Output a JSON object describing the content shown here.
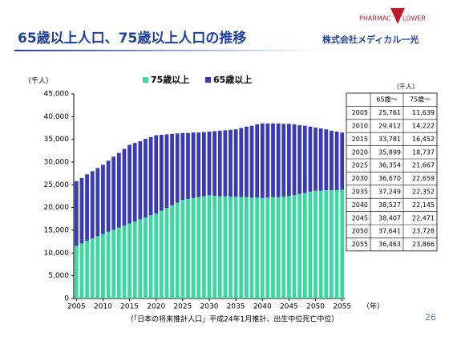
{
  "title": "65歳以上人口、75歳以上人口の推移",
  "logo": {
    "brand_left": "PHARMAC",
    "brand_right": "LOWER",
    "company": "株式会社メディカル一光"
  },
  "footnote": "（「日本の将来推計人口」平成24年1月推計、出生中位死亡中位）",
  "page_number": "26",
  "chart_data": {
    "type": "stacked_bar",
    "y_unit": "（千人）",
    "x_unit": "（年）",
    "grid": false,
    "legend": "top",
    "categories": [
      "2005",
      null,
      null,
      null,
      null,
      "2010",
      null,
      null,
      null,
      null,
      "2015",
      null,
      null,
      null,
      null,
      "2020",
      null,
      null,
      null,
      null,
      "2025",
      null,
      null,
      null,
      null,
      "2030",
      null,
      null,
      null,
      null,
      "2035",
      null,
      null,
      null,
      null,
      "2040",
      null,
      null,
      null,
      null,
      "2045",
      null,
      null,
      null,
      null,
      "2050",
      null,
      null,
      null,
      null,
      "2055"
    ],
    "series": [
      {
        "name": "75歳以上",
        "color": "#3cd8a0",
        "values": [
          11600,
          12100,
          12700,
          13200,
          13700,
          14200,
          14700,
          15100,
          15600,
          16000,
          16500,
          16900,
          17400,
          17800,
          18300,
          18700,
          19300,
          19900,
          20500,
          21100,
          21700,
          21900,
          22100,
          22300,
          22500,
          22700,
          22600,
          22500,
          22500,
          22400,
          22400,
          22300,
          22300,
          22200,
          22200,
          22100,
          22200,
          22300,
          22300,
          22400,
          22500,
          22700,
          23000,
          23200,
          23500,
          23700,
          23700,
          23800,
          23800,
          23800,
          23900
        ]
      },
      {
        "name": "65歳以上",
        "color": "#3a3ab4",
        "values": [
          14200,
          14400,
          14600,
          14800,
          15000,
          15200,
          15600,
          16100,
          16400,
          16900,
          17300,
          17300,
          17200,
          17300,
          17200,
          17200,
          16700,
          16200,
          15700,
          15200,
          14700,
          14500,
          14400,
          14200,
          14100,
          14000,
          14200,
          14400,
          14500,
          14700,
          14800,
          15200,
          15500,
          15800,
          16100,
          16400,
          16300,
          16200,
          16200,
          16000,
          15900,
          15600,
          15100,
          14800,
          14300,
          13900,
          13700,
          13400,
          13100,
          12900,
          12600
        ]
      }
    ],
    "ylim": [
      0,
      45000
    ],
    "yticks": [
      0,
      {
        "value": 5000,
        "label": "5,000"
      },
      {
        "value": 10000,
        "label": "10,000"
      },
      {
        "value": 15000,
        "label": "15,000"
      },
      {
        "value": 20000,
        "label": "20,000"
      },
      {
        "value": 25000,
        "label": "25,000"
      },
      {
        "value": 30000,
        "label": "30,000"
      },
      {
        "value": 35000,
        "label": "35,000"
      },
      {
        "value": 40000,
        "label": "40,000"
      },
      {
        "value": 45000,
        "label": "45,000"
      }
    ]
  },
  "table": {
    "unit": "（千人）",
    "header": [
      "65歳～",
      "75歳～"
    ],
    "rows": [
      [
        "2005",
        "25,761",
        "11,639"
      ],
      [
        "2010",
        "29,412",
        "14,222"
      ],
      [
        "2015",
        "33,781",
        "16,452"
      ],
      [
        "2020",
        "35,899",
        "18,737"
      ],
      [
        "2025",
        "36,354",
        "21,667"
      ],
      [
        "2030",
        "36,670",
        "22,659"
      ],
      [
        "2035",
        "37,249",
        "22,352"
      ],
      [
        "2040",
        "38,527",
        "22,145"
      ],
      [
        "2045",
        "38,407",
        "22,471"
      ],
      [
        "2050",
        "37,641",
        "23,728"
      ],
      [
        "2055",
        "36,463",
        "23,866"
      ]
    ]
  }
}
